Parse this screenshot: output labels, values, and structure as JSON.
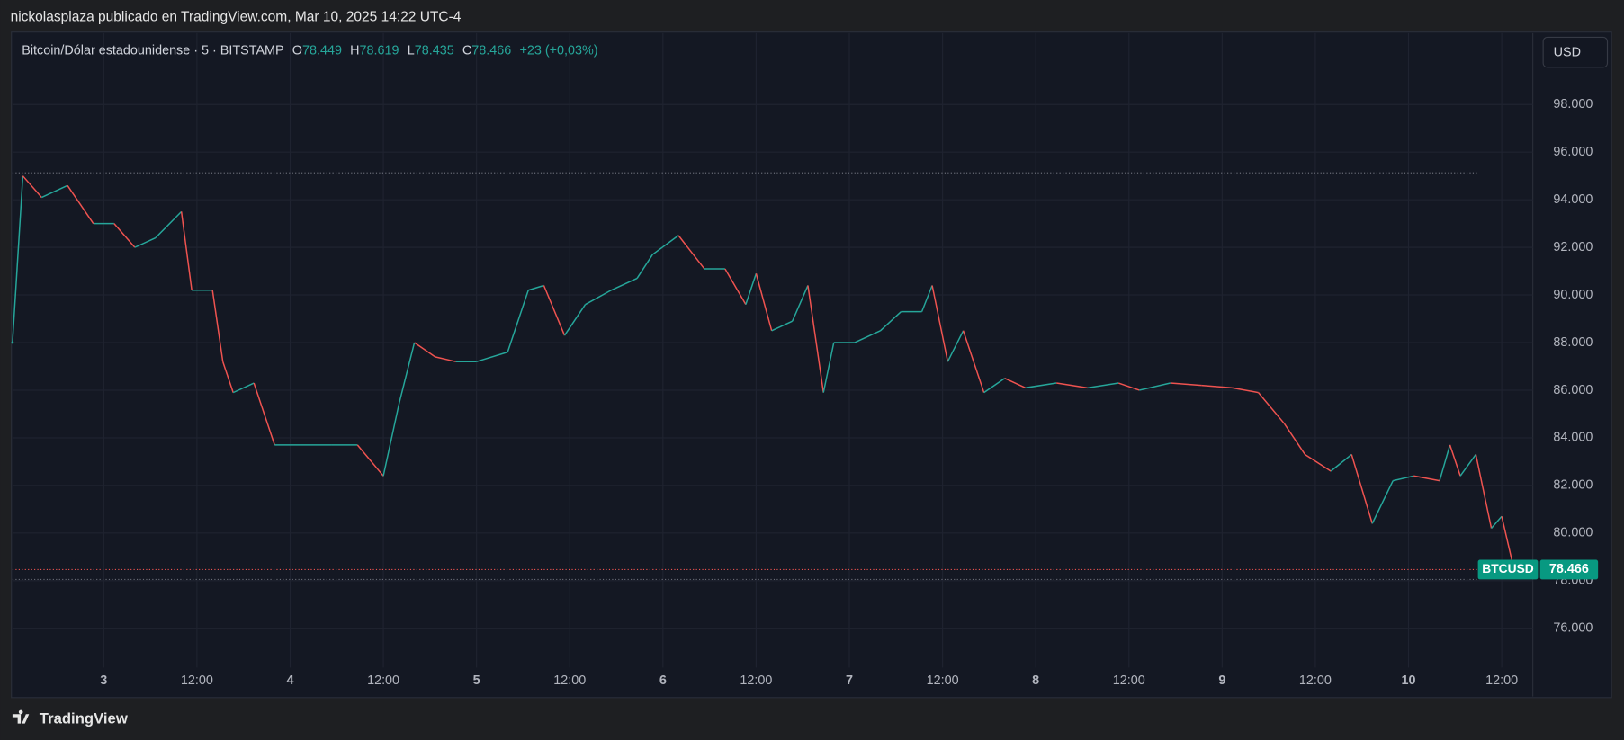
{
  "header": {
    "title": "nickolasplaza publicado en TradingView.com, Mar 10, 2025 14:22 UTC-4"
  },
  "footer": {
    "brand": "TradingView"
  },
  "chart_data": {
    "type": "line",
    "symbol": "Bitcoin/Dólar estadounidense · 5 · BITSTAMP",
    "ohlc": {
      "o_label": "O",
      "o": "78.449",
      "h_label": "H",
      "h": "78.619",
      "l_label": "L",
      "l": "78.435",
      "c_label": "C",
      "c": "78.466",
      "change": "+23 (+0,03%)"
    },
    "currency": "USD",
    "price_tag": {
      "symbol": "BTCUSD",
      "price": {
        "value": 78466,
        "label": "78.466"
      }
    },
    "reference_lines": [
      95130,
      78050
    ],
    "up_color": "#26a69a",
    "down_color": "#ef5350",
    "grid": true,
    "xlim": [
      "2025-03-02T12:15",
      "2025-03-10T16:00"
    ],
    "ylim": [
      74350,
      101000
    ],
    "xticks": [
      {
        "value": "2025-03-03T00:00",
        "label": "3"
      },
      {
        "value": "2025-03-03T12:00",
        "label": "12:00"
      },
      {
        "value": "2025-03-04T00:00",
        "label": "4"
      },
      {
        "value": "2025-03-04T12:00",
        "label": "12:00"
      },
      {
        "value": "2025-03-05T00:00",
        "label": "5"
      },
      {
        "value": "2025-03-05T12:00",
        "label": "12:00"
      },
      {
        "value": "2025-03-06T00:00",
        "label": "6"
      },
      {
        "value": "2025-03-06T12:00",
        "label": "12:00"
      },
      {
        "value": "2025-03-07T00:00",
        "label": "7"
      },
      {
        "value": "2025-03-07T12:00",
        "label": "12:00"
      },
      {
        "value": "2025-03-08T00:00",
        "label": "8"
      },
      {
        "value": "2025-03-08T12:00",
        "label": "12:00"
      },
      {
        "value": "2025-03-09T00:00",
        "label": "9"
      },
      {
        "value": "2025-03-09T12:00",
        "label": "12:00"
      },
      {
        "value": "2025-03-10T00:00",
        "label": "10"
      },
      {
        "value": "2025-03-10T12:00",
        "label": "12:00"
      }
    ],
    "yticks": [
      {
        "value": 76000,
        "label": "76.000"
      },
      {
        "value": 78000,
        "label": "78.000"
      },
      {
        "value": 80000,
        "label": "80.000"
      },
      {
        "value": 82000,
        "label": "82.000"
      },
      {
        "value": 84000,
        "label": "84.000"
      },
      {
        "value": 86000,
        "label": "86.000"
      },
      {
        "value": 88000,
        "label": "88.000"
      },
      {
        "value": 90000,
        "label": "90.000"
      },
      {
        "value": 92000,
        "label": "92.000"
      },
      {
        "value": 94000,
        "label": "94.000"
      },
      {
        "value": 96000,
        "label": "96.000"
      },
      {
        "value": 98000,
        "label": "98.000"
      }
    ],
    "x": [
      "2025-03-02T12:15",
      "2025-03-02T13:35",
      "2025-03-02T16:00",
      "2025-03-02T19:20",
      "2025-03-02T22:40",
      "2025-03-03T01:20",
      "2025-03-03T04:00",
      "2025-03-03T06:40",
      "2025-03-03T10:00",
      "2025-03-03T11:20",
      "2025-03-03T14:00",
      "2025-03-03T15:20",
      "2025-03-03T16:40",
      "2025-03-03T19:20",
      "2025-03-03T22:00",
      "2025-03-04T01:20",
      "2025-03-04T05:20",
      "2025-03-04T08:40",
      "2025-03-04T12:00",
      "2025-03-04T14:00",
      "2025-03-04T16:00",
      "2025-03-04T18:40",
      "2025-03-04T21:20",
      "2025-03-05T00:00",
      "2025-03-05T04:00",
      "2025-03-05T06:40",
      "2025-03-05T08:40",
      "2025-03-05T11:20",
      "2025-03-05T14:00",
      "2025-03-05T17:20",
      "2025-03-05T20:40",
      "2025-03-05T22:40",
      "2025-03-06T02:00",
      "2025-03-06T05:20",
      "2025-03-06T08:00",
      "2025-03-06T10:40",
      "2025-03-06T12:00",
      "2025-03-06T14:00",
      "2025-03-06T16:40",
      "2025-03-06T18:40",
      "2025-03-06T20:40",
      "2025-03-06T22:00",
      "2025-03-07T00:40",
      "2025-03-07T04:00",
      "2025-03-07T06:40",
      "2025-03-07T09:20",
      "2025-03-07T10:40",
      "2025-03-07T12:40",
      "2025-03-07T14:40",
      "2025-03-07T17:20",
      "2025-03-07T20:00",
      "2025-03-07T22:40",
      "2025-03-08T02:40",
      "2025-03-08T06:40",
      "2025-03-08T10:40",
      "2025-03-08T13:20",
      "2025-03-08T17:20",
      "2025-03-08T21:20",
      "2025-03-09T01:20",
      "2025-03-09T04:40",
      "2025-03-09T08:00",
      "2025-03-09T10:40",
      "2025-03-09T14:00",
      "2025-03-09T16:40",
      "2025-03-09T19:20",
      "2025-03-09T22:00",
      "2025-03-10T00:40",
      "2025-03-10T04:00",
      "2025-03-10T05:20",
      "2025-03-10T06:40",
      "2025-03-10T08:40",
      "2025-03-10T10:40",
      "2025-03-10T12:00",
      "2025-03-10T13:35"
    ],
    "series": [
      {
        "name": "BTCUSD",
        "values": [
          88000,
          95000,
          94100,
          94600,
          93000,
          93000,
          92000,
          92400,
          93500,
          90200,
          90200,
          87200,
          85900,
          86300,
          83700,
          83700,
          83700,
          83700,
          82400,
          85400,
          88000,
          87400,
          87200,
          87200,
          87600,
          90200,
          90400,
          88300,
          89600,
          90200,
          90700,
          91700,
          92500,
          91100,
          91100,
          89600,
          90900,
          88500,
          88900,
          90400,
          85900,
          88000,
          88000,
          88500,
          89300,
          89300,
          90400,
          87200,
          88500,
          85900,
          86500,
          86100,
          86300,
          86100,
          86300,
          86000,
          86300,
          86200,
          86100,
          85900,
          84600,
          83300,
          82600,
          83300,
          80400,
          82200,
          82400,
          82200,
          83700,
          82400,
          83300,
          80200,
          80700,
          78466
        ]
      }
    ]
  }
}
